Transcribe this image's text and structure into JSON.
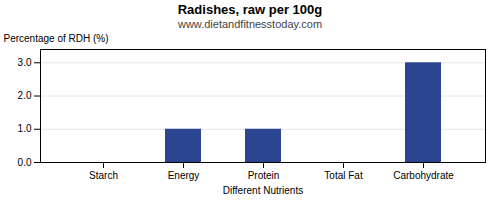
{
  "chart_data": {
    "type": "bar",
    "title": "Radishes, raw per 100g",
    "subtitle": "www.dietandfitnesstoday.com",
    "categories": [
      "Starch",
      "Energy",
      "Protein",
      "Total Fat",
      "Carbohydrate"
    ],
    "values": [
      0.0,
      1.0,
      1.0,
      0.0,
      3.0
    ],
    "color": "#2b4590",
    "xlabel": "Different Nutrients",
    "ylabel": "Percentage of RDH (%)",
    "ylim": [
      0.0,
      3.4
    ],
    "yticks": [
      {
        "value": 0.0,
        "label": "0.0"
      },
      {
        "value": 1.0,
        "label": "1.0"
      },
      {
        "value": 2.0,
        "label": "2.0"
      },
      {
        "value": 3.0,
        "label": "3.0"
      }
    ],
    "grid": true
  }
}
